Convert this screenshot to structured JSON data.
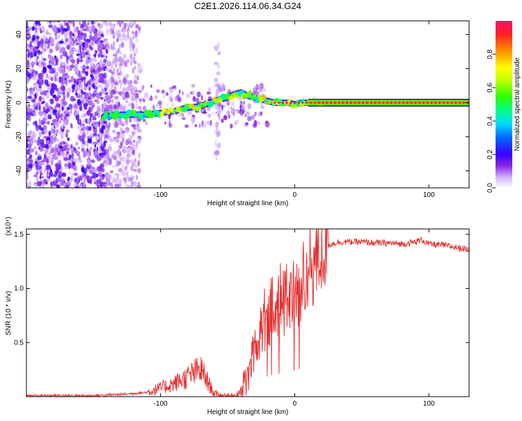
{
  "title": "C2E1.2026.114.06.34.G24",
  "chart_data": [
    {
      "type": "heatmap",
      "title": "C2E1.2026.114.06.34.G24",
      "xlabel": "Height of straight line (km)",
      "ylabel": "Frequency (Hz)",
      "xlim": [
        -200,
        130
      ],
      "ylim": [
        -50,
        48
      ],
      "xticks": [
        -100,
        0,
        100
      ],
      "xtick_labels": [
        "-100",
        "0",
        "100"
      ],
      "yticks": [
        -40,
        -20,
        0,
        20,
        40
      ],
      "ytick_labels": [
        "-40",
        "-20",
        "0",
        "20",
        "40"
      ],
      "grid": false,
      "colorbar": {
        "label": "Normalized spectral amplitude",
        "range": [
          0.0,
          1.0
        ],
        "ticks": [
          0.0,
          0.2,
          0.4,
          0.6,
          0.8
        ],
        "tick_labels": [
          "0.0",
          "0.2",
          "0.4",
          "0.6",
          "0.8"
        ]
      },
      "doppler_track": {
        "x": [
          -142,
          -130,
          -120,
          -110,
          -100,
          -90,
          -80,
          -70,
          -60,
          -55,
          -50,
          -45,
          -40,
          -35,
          -30,
          -25,
          -20,
          -15,
          -10,
          -5,
          0,
          5,
          10,
          20,
          40,
          60,
          80,
          100,
          130
        ],
        "y": [
          -8,
          -7,
          -7,
          -7,
          -6,
          -5,
          -3,
          -2,
          1,
          2,
          3,
          5,
          6,
          4,
          3,
          2,
          1,
          0,
          0,
          0,
          -1,
          0,
          0,
          0,
          0,
          0,
          0,
          0,
          0
        ]
      }
    },
    {
      "type": "line",
      "xlabel": "Height of straight line (km)",
      "ylabel": "SNR (10 * v/v)",
      "yscale_label": "(x10⁴)",
      "xlim": [
        -200,
        130
      ],
      "ylim": [
        0,
        1.55
      ],
      "xticks": [
        -100,
        0,
        100
      ],
      "xtick_labels": [
        "-100",
        "0",
        "100"
      ],
      "yticks": [
        0.5,
        1.0,
        1.5
      ],
      "ytick_labels": [
        "0.5",
        "1.0",
        "1.5"
      ],
      "series": [
        {
          "name": "SNR",
          "color": "#e53030",
          "x": [
            -200,
            -150,
            -130,
            -110,
            -100,
            -90,
            -80,
            -75,
            -70,
            -65,
            -60,
            -55,
            -50,
            -45,
            -40,
            -35,
            -32,
            -30,
            -27,
            -25,
            -22,
            -20,
            -17,
            -15,
            -12,
            -10,
            -7,
            -5,
            -2,
            0,
            2,
            5,
            8,
            10,
            12,
            15,
            18,
            20,
            25,
            30,
            35,
            40,
            50,
            60,
            70,
            80,
            90,
            95,
            100,
            110,
            120,
            130
          ],
          "y": [
            0.01,
            0.01,
            0.02,
            0.04,
            0.08,
            0.12,
            0.18,
            0.22,
            0.25,
            0.14,
            0.03,
            0.01,
            0.01,
            0.01,
            0.05,
            0.18,
            0.35,
            0.45,
            0.55,
            0.65,
            0.72,
            0.75,
            0.8,
            0.84,
            0.85,
            0.86,
            0.88,
            0.9,
            0.95,
            0.98,
            1.0,
            1.04,
            1.1,
            1.15,
            1.2,
            1.25,
            1.3,
            1.35,
            1.4,
            1.42,
            1.43,
            1.43,
            1.43,
            1.42,
            1.42,
            1.41,
            1.43,
            1.45,
            1.41,
            1.4,
            1.38,
            1.36
          ]
        }
      ]
    }
  ]
}
